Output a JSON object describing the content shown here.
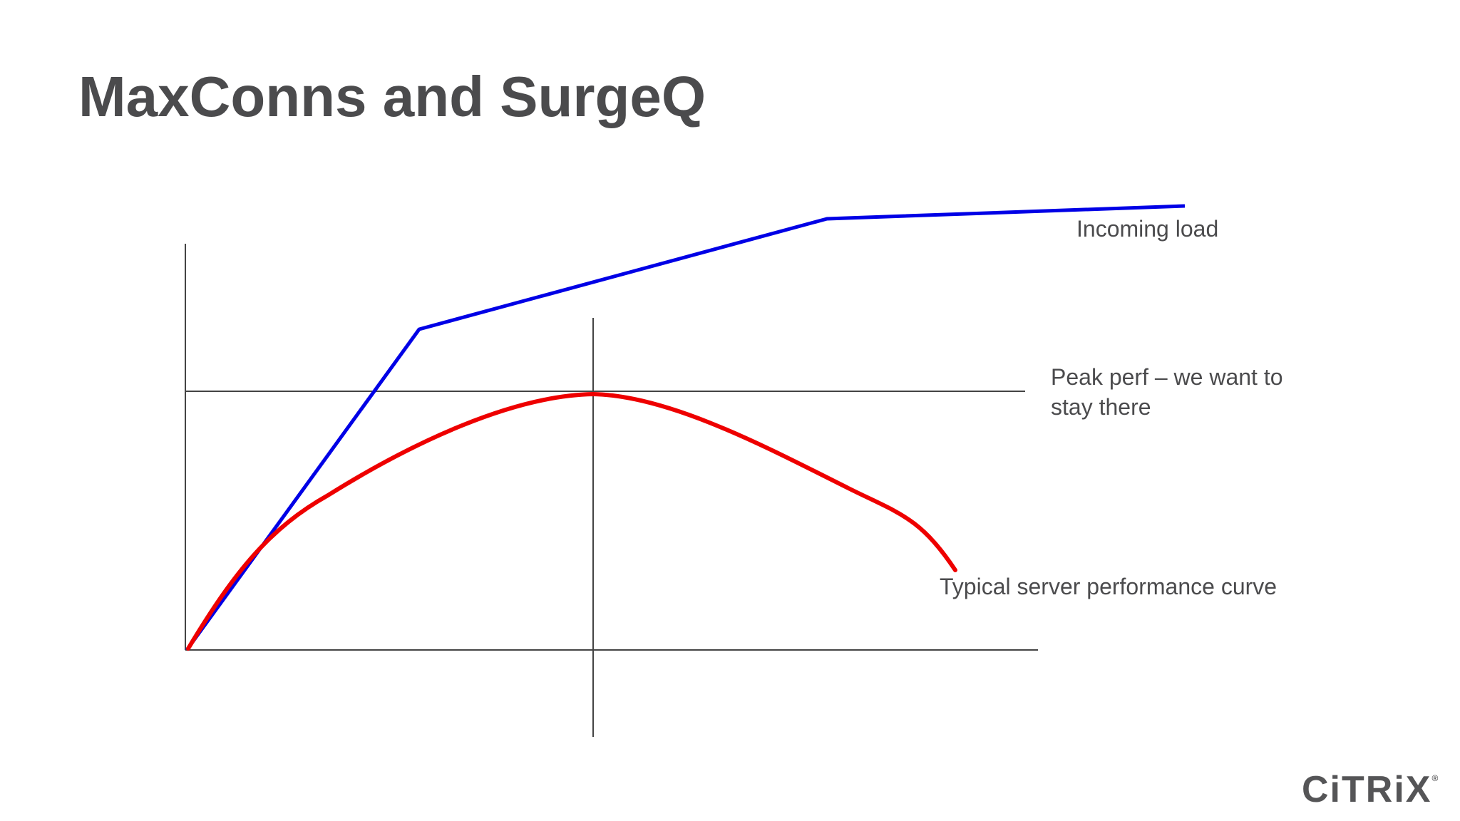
{
  "slide": {
    "title": "MaxConns and SurgeQ"
  },
  "diagram": {
    "labels": {
      "incoming": "Incoming load",
      "peak_line1": "Peak perf – we want to",
      "peak_line2": "stay there",
      "typical": "Typical server performance curve"
    },
    "colors": {
      "incoming_load": "#0000e6",
      "performance_curve": "#ee0000",
      "axes": "#444444"
    }
  },
  "logo": {
    "text": "CiTRiX",
    "mark": "®"
  }
}
